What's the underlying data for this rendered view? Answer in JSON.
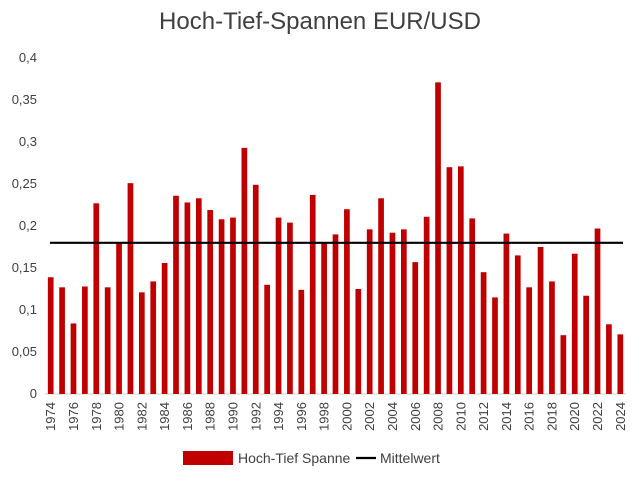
{
  "chart_data": {
    "type": "bar",
    "title": "Hoch-Tief-Spannen EUR/USD",
    "xlabel": "",
    "ylabel": "",
    "ylim": [
      0,
      0.4
    ],
    "y_ticks": [
      "0",
      "0,05",
      "0,1",
      "0,15",
      "0,2",
      "0,25",
      "0,3",
      "0,35",
      "0,4"
    ],
    "categories": [
      "1974",
      "1975",
      "1976",
      "1977",
      "1978",
      "1979",
      "1980",
      "1981",
      "1982",
      "1983",
      "1984",
      "1985",
      "1986",
      "1987",
      "1988",
      "1989",
      "1990",
      "1991",
      "1992",
      "1993",
      "1994",
      "1995",
      "1996",
      "1997",
      "1998",
      "1999",
      "2000",
      "2001",
      "2002",
      "2003",
      "2004",
      "2005",
      "2006",
      "2007",
      "2008",
      "2009",
      "2010",
      "2011",
      "2012",
      "2013",
      "2014",
      "2015",
      "2016",
      "2017",
      "2018",
      "2019",
      "2020",
      "2021",
      "2022",
      "2023",
      "2024"
    ],
    "x_tick_labels": [
      "1974",
      "1976",
      "1978",
      "1980",
      "1982",
      "1984",
      "1986",
      "1988",
      "1990",
      "1992",
      "1994",
      "1996",
      "1998",
      "2000",
      "2002",
      "2004",
      "2006",
      "2008",
      "2010",
      "2012",
      "2014",
      "2016",
      "2018",
      "2020",
      "2022",
      "2024"
    ],
    "series": [
      {
        "name": "Hoch-Tief Spanne",
        "type": "bar",
        "color": "#C00000",
        "values": [
          0.139,
          0.127,
          0.084,
          0.128,
          0.227,
          0.127,
          0.179,
          0.251,
          0.121,
          0.134,
          0.156,
          0.236,
          0.228,
          0.233,
          0.219,
          0.208,
          0.21,
          0.293,
          0.249,
          0.13,
          0.21,
          0.204,
          0.124,
          0.237,
          0.18,
          0.19,
          0.22,
          0.125,
          0.196,
          0.233,
          0.192,
          0.196,
          0.157,
          0.211,
          0.371,
          0.27,
          0.271,
          0.209,
          0.145,
          0.115,
          0.191,
          0.165,
          0.127,
          0.175,
          0.134,
          0.07,
          0.167,
          0.117,
          0.197,
          0.083,
          0.071
        ]
      },
      {
        "name": "Mittelwert",
        "type": "line",
        "color": "#000000",
        "value": 0.18
      }
    ],
    "grid": false,
    "legend_position": "bottom"
  }
}
